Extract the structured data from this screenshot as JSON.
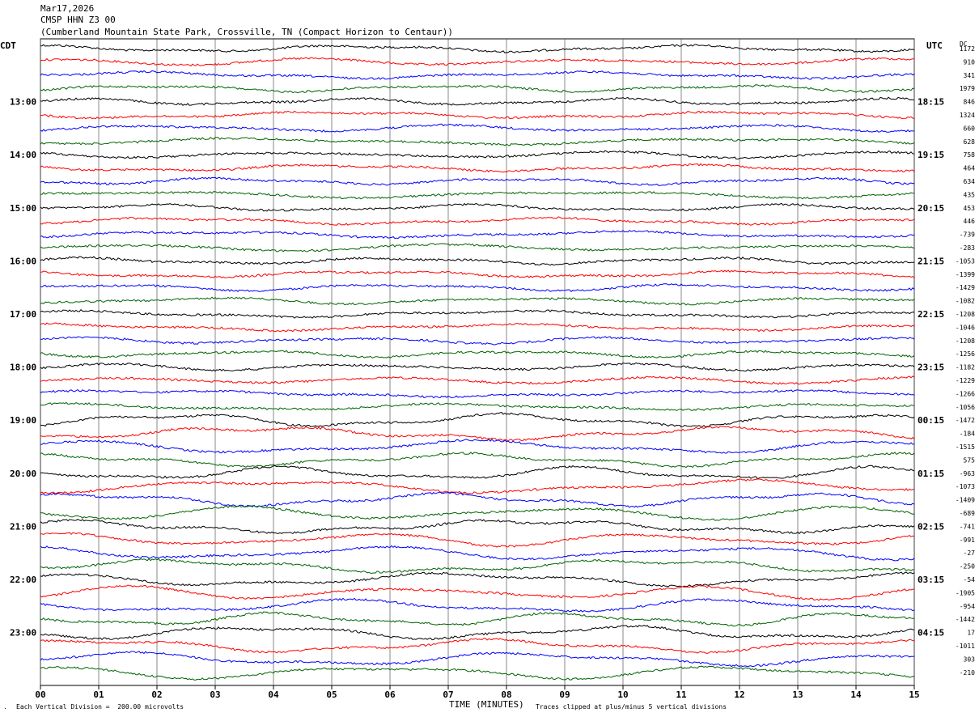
{
  "header": {
    "date": "Mar17,2026",
    "station": "CMSP HHN Z3 00",
    "location": "(Cumberland Mountain State Park, Crossville, TN (Compact Horizon to Centaur))"
  },
  "left_tz": "CDT",
  "right_tz": "UTC",
  "dc_label": "DC",
  "footer": {
    "scale_note": "Each Vertical Division =  200.00 microvolts",
    "clip_note": "Traces clipped at plus/minus 5 vertical divisions",
    "marker": "."
  },
  "chart_data": {
    "type": "line",
    "title": "CMSP HHN Z3 00",
    "xlabel": "TIME (MINUTES)",
    "x_ticks": [
      "00",
      "01",
      "02",
      "03",
      "04",
      "05",
      "06",
      "07",
      "08",
      "09",
      "10",
      "11",
      "12",
      "13",
      "14",
      "15"
    ],
    "xlim": [
      0,
      15
    ],
    "left_hour_labels": [
      "13:00",
      "14:00",
      "15:00",
      "16:00",
      "17:00",
      "18:00",
      "19:00",
      "20:00",
      "21:00",
      "22:00",
      "23:00"
    ],
    "right_hour_labels": [
      "18:15",
      "19:15",
      "20:15",
      "21:15",
      "22:15",
      "23:15",
      "00:15",
      "01:15",
      "02:15",
      "03:15",
      "04:15"
    ],
    "dc_offsets": [
      "1172",
      "910",
      "341",
      "1979",
      "846",
      "1324",
      "660",
      "628",
      "758",
      "464",
      "634",
      "435",
      "453",
      "446",
      "-739",
      "-283",
      "-1053",
      "-1399",
      "-1429",
      "-1082",
      "-1208",
      "-1046",
      "-1208",
      "-1256",
      "-1182",
      "-1229",
      "-1266",
      "-1056",
      "-1472",
      "-184",
      "-1515",
      "575",
      "-963",
      "-1073",
      "-1409",
      "-689",
      "-741",
      "-991",
      "-27",
      "-250",
      "-54",
      "-1905",
      "-954",
      "-1442",
      "17",
      "-1011",
      "303",
      "-210"
    ],
    "series_colors": [
      "#000000",
      "#ff0000",
      "#0000ff",
      "#006400"
    ],
    "traces_per_hour": 4,
    "trace_count": 48,
    "grid": "vertical",
    "scale_microvolts_per_division": 200
  }
}
